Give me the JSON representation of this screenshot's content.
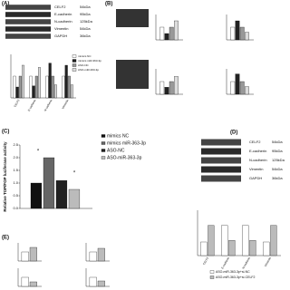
{
  "panel_a": {
    "label": "(A)",
    "blot": {
      "proteins": [
        "CELF2",
        "E-cadherin",
        "N-cadherin",
        "Vimentin",
        "GAPDH"
      ],
      "sizes": [
        "54kDa",
        "95kDa",
        "125kDa",
        "54kDa",
        "36kDa"
      ]
    },
    "chart": {
      "categories": [
        "CELF2",
        "E-cadherin",
        "N-cadherin",
        "Vimentin"
      ],
      "ylim": [
        0,
        2
      ],
      "series": [
        {
          "name": "mimics NC",
          "color": "#ffffff",
          "values": [
            1.0,
            1.0,
            1.0,
            1.0
          ]
        },
        {
          "name": "mimics miR-363-3p",
          "color": "#222222",
          "values": [
            0.5,
            0.55,
            1.6,
            1.5
          ]
        },
        {
          "name": "ASO-NC",
          "color": "#999999",
          "values": [
            1.0,
            1.0,
            1.0,
            1.0
          ]
        },
        {
          "name": "ASO-miR-363-3p",
          "color": "#dddddd",
          "values": [
            1.5,
            1.4,
            0.6,
            0.6
          ]
        }
      ]
    }
  },
  "panel_b": {
    "label": "(B)",
    "charts": [
      {
        "ylim": [
          0,
          2
        ],
        "series": [
          {
            "color": "#ffffff",
            "values": [
              1.0
            ]
          },
          {
            "color": "#222222",
            "values": [
              0.5
            ]
          },
          {
            "color": "#999999",
            "values": [
              1.0
            ]
          },
          {
            "color": "#dddddd",
            "values": [
              1.5
            ]
          }
        ]
      },
      {
        "ylim": [
          0,
          2
        ],
        "series": [
          {
            "color": "#ffffff",
            "values": [
              1.0
            ]
          },
          {
            "color": "#222222",
            "values": [
              1.5
            ]
          },
          {
            "color": "#999999",
            "values": [
              1.0
            ]
          },
          {
            "color": "#dddddd",
            "values": [
              0.6
            ]
          }
        ]
      },
      {
        "ylim": [
          0,
          2
        ],
        "series": [
          {
            "color": "#ffffff",
            "values": [
              1.0
            ]
          },
          {
            "color": "#222222",
            "values": [
              0.55
            ]
          },
          {
            "color": "#999999",
            "values": [
              1.0
            ]
          },
          {
            "color": "#dddddd",
            "values": [
              1.4
            ]
          }
        ]
      },
      {
        "ylim": [
          0,
          2
        ],
        "series": [
          {
            "color": "#ffffff",
            "values": [
              1.0
            ]
          },
          {
            "color": "#222222",
            "values": [
              1.6
            ]
          },
          {
            "color": "#999999",
            "values": [
              1.0
            ]
          },
          {
            "color": "#dddddd",
            "values": [
              0.6
            ]
          }
        ]
      }
    ]
  },
  "panel_c": {
    "label": "(C)",
    "y_label": "Relative TOP/FOP luciferase activity",
    "ylim": [
      0,
      2.5
    ],
    "yticks": [
      {
        "value": 0,
        "label": "0.0"
      },
      {
        "value": 0.5,
        "label": "0.5"
      },
      {
        "value": 1,
        "label": "1.0"
      },
      {
        "value": 1.5,
        "label": "1.5"
      },
      {
        "value": 2,
        "label": "2.0"
      },
      {
        "value": 2.5,
        "label": "2.5"
      }
    ],
    "annotations": [
      "*",
      "*"
    ],
    "series": [
      {
        "name": "mimics NC",
        "color": "#111111",
        "values": [
          1.0
        ]
      },
      {
        "name": "mimics miR-363-3p",
        "color": "#666666",
        "values": [
          2.0
        ]
      },
      {
        "name": "ASO-NC",
        "color": "#222222",
        "values": [
          1.1
        ]
      },
      {
        "name": "ASO-miR-363-3p",
        "color": "#bbbbbb",
        "values": [
          0.75
        ]
      }
    ]
  },
  "panel_d": {
    "label": "(D)",
    "blot": {
      "proteins": [
        "CELF2",
        "E-cadherin",
        "N-cadherin",
        "Vimentin",
        "GAPDH"
      ],
      "sizes": [
        "54kDa",
        "95kDa",
        "125kDa",
        "54kDa",
        "36kDa"
      ]
    },
    "chart": {
      "categories": [
        "CELF2",
        "E-cadherin",
        "N-cadherin",
        "Vimentin"
      ],
      "ylim": [
        0,
        1.5
      ],
      "series": [
        {
          "name": "ASO-miR-363-3p+si-NC",
          "color": "#ffffff",
          "values": [
            0.45,
            1.0,
            1.0,
            0.45
          ]
        },
        {
          "name": "ASO-miR-363-3p+si-CELF2",
          "color": "#bbbbbb",
          "values": [
            1.0,
            0.5,
            0.5,
            1.0
          ]
        }
      ]
    }
  },
  "panel_e": {
    "label": "(E)",
    "charts": [
      {
        "ylim": [
          0,
          2
        ],
        "series": [
          {
            "color": "#ffffff",
            "values": [
              1.0
            ]
          },
          {
            "color": "#bbbbbb",
            "values": [
              1.5
            ]
          }
        ]
      },
      {
        "ylim": [
          0,
          2
        ],
        "series": [
          {
            "color": "#ffffff",
            "values": [
              1.0
            ]
          },
          {
            "color": "#bbbbbb",
            "values": [
              1.4
            ]
          }
        ]
      },
      {
        "ylim": [
          0,
          2
        ],
        "series": [
          {
            "color": "#ffffff",
            "values": [
              1.0
            ]
          },
          {
            "color": "#bbbbbb",
            "values": [
              0.5
            ]
          }
        ]
      },
      {
        "ylim": [
          0,
          2
        ],
        "series": [
          {
            "color": "#ffffff",
            "values": [
              1.0
            ]
          },
          {
            "color": "#bbbbbb",
            "values": [
              0.6
            ]
          }
        ]
      }
    ]
  }
}
